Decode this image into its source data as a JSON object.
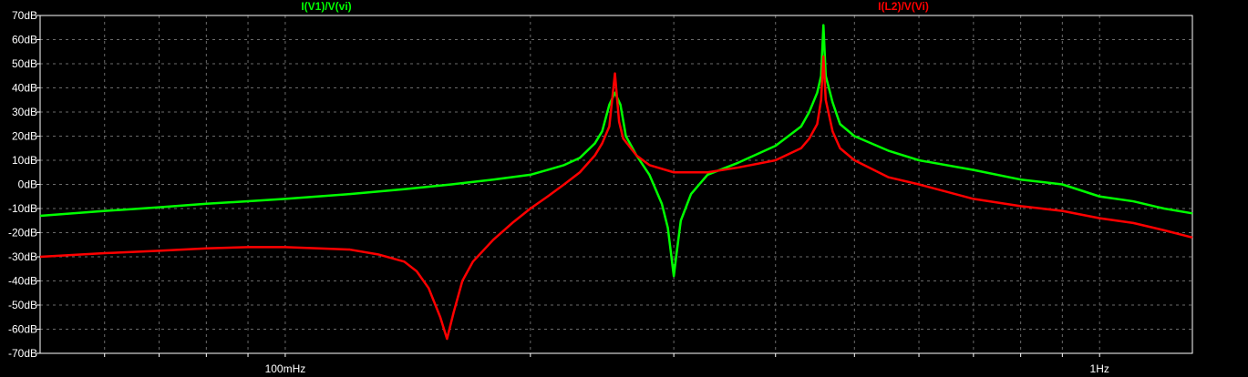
{
  "chart_data": {
    "type": "line",
    "x_scale": "log",
    "xlim_hz": [
      0.05,
      1.3
    ],
    "ylim": [
      -70,
      70
    ],
    "y_ticks": [
      {
        "value": 70,
        "label": "70dB"
      },
      {
        "value": 60,
        "label": "60dB"
      },
      {
        "value": 50,
        "label": "50dB"
      },
      {
        "value": 40,
        "label": "40dB"
      },
      {
        "value": 30,
        "label": "30dB"
      },
      {
        "value": 20,
        "label": "20dB"
      },
      {
        "value": 10,
        "label": "10dB"
      },
      {
        "value": 0,
        "label": "0dB"
      },
      {
        "value": -10,
        "label": "-10dB"
      },
      {
        "value": -20,
        "label": "-20dB"
      },
      {
        "value": -30,
        "label": "-30dB"
      },
      {
        "value": -40,
        "label": "-40dB"
      },
      {
        "value": -50,
        "label": "-50dB"
      },
      {
        "value": -60,
        "label": "-60dB"
      },
      {
        "value": -70,
        "label": "-70dB"
      }
    ],
    "x_tick_labels": [
      {
        "value": 0.1,
        "label": "100mHz"
      },
      {
        "value": 1,
        "label": "1Hz"
      }
    ],
    "grid": true,
    "background": "#000000",
    "series": [
      {
        "name": "I(V1)/V(vi)",
        "color": "#00ff00",
        "points": [
          [
            0.05,
            -13
          ],
          [
            0.06,
            -11
          ],
          [
            0.07,
            -9.5
          ],
          [
            0.08,
            -8
          ],
          [
            0.09,
            -7
          ],
          [
            0.1,
            -6
          ],
          [
            0.12,
            -4
          ],
          [
            0.14,
            -2
          ],
          [
            0.16,
            0
          ],
          [
            0.18,
            2
          ],
          [
            0.2,
            4
          ],
          [
            0.21,
            6
          ],
          [
            0.22,
            8
          ],
          [
            0.23,
            11
          ],
          [
            0.24,
            17
          ],
          [
            0.245,
            22
          ],
          [
            0.25,
            33
          ],
          [
            0.254,
            38
          ],
          [
            0.258,
            33
          ],
          [
            0.262,
            20
          ],
          [
            0.27,
            12
          ],
          [
            0.28,
            4
          ],
          [
            0.29,
            -8
          ],
          [
            0.295,
            -18
          ],
          [
            0.298,
            -30
          ],
          [
            0.3,
            -38
          ],
          [
            0.302,
            -30
          ],
          [
            0.306,
            -15
          ],
          [
            0.315,
            -4
          ],
          [
            0.33,
            4
          ],
          [
            0.36,
            9
          ],
          [
            0.4,
            16
          ],
          [
            0.43,
            24
          ],
          [
            0.44,
            30
          ],
          [
            0.45,
            38
          ],
          [
            0.455,
            45
          ],
          [
            0.458,
            66
          ],
          [
            0.461,
            45
          ],
          [
            0.47,
            34
          ],
          [
            0.48,
            25
          ],
          [
            0.5,
            20
          ],
          [
            0.55,
            14
          ],
          [
            0.6,
            10
          ],
          [
            0.7,
            6
          ],
          [
            0.8,
            2
          ],
          [
            0.9,
            0
          ],
          [
            1.0,
            -5
          ],
          [
            1.1,
            -7
          ],
          [
            1.2,
            -10
          ],
          [
            1.3,
            -12
          ]
        ]
      },
      {
        "name": "I(L2)/V(Vi)",
        "color": "#ff0000",
        "points": [
          [
            0.05,
            -30
          ],
          [
            0.06,
            -28.5
          ],
          [
            0.07,
            -27.5
          ],
          [
            0.08,
            -26.5
          ],
          [
            0.09,
            -26
          ],
          [
            0.1,
            -26
          ],
          [
            0.11,
            -26.5
          ],
          [
            0.12,
            -27
          ],
          [
            0.13,
            -29
          ],
          [
            0.14,
            -32
          ],
          [
            0.145,
            -36
          ],
          [
            0.15,
            -43
          ],
          [
            0.155,
            -55
          ],
          [
            0.158,
            -64
          ],
          [
            0.161,
            -53
          ],
          [
            0.165,
            -40
          ],
          [
            0.17,
            -32
          ],
          [
            0.18,
            -23
          ],
          [
            0.19,
            -16
          ],
          [
            0.2,
            -10
          ],
          [
            0.21,
            -5
          ],
          [
            0.22,
            0
          ],
          [
            0.23,
            5
          ],
          [
            0.24,
            12
          ],
          [
            0.245,
            17
          ],
          [
            0.25,
            24
          ],
          [
            0.254,
            46
          ],
          [
            0.257,
            26
          ],
          [
            0.26,
            19
          ],
          [
            0.27,
            12
          ],
          [
            0.28,
            8
          ],
          [
            0.3,
            5
          ],
          [
            0.33,
            5
          ],
          [
            0.36,
            7
          ],
          [
            0.4,
            10
          ],
          [
            0.43,
            15
          ],
          [
            0.44,
            19
          ],
          [
            0.45,
            25
          ],
          [
            0.455,
            35
          ],
          [
            0.458,
            53
          ],
          [
            0.461,
            35
          ],
          [
            0.47,
            22
          ],
          [
            0.48,
            15
          ],
          [
            0.5,
            10
          ],
          [
            0.55,
            3
          ],
          [
            0.6,
            0
          ],
          [
            0.7,
            -6
          ],
          [
            0.8,
            -9
          ],
          [
            0.9,
            -11
          ],
          [
            1.0,
            -14
          ],
          [
            1.1,
            -16
          ],
          [
            1.2,
            -19
          ],
          [
            1.3,
            -22
          ]
        ]
      }
    ]
  }
}
